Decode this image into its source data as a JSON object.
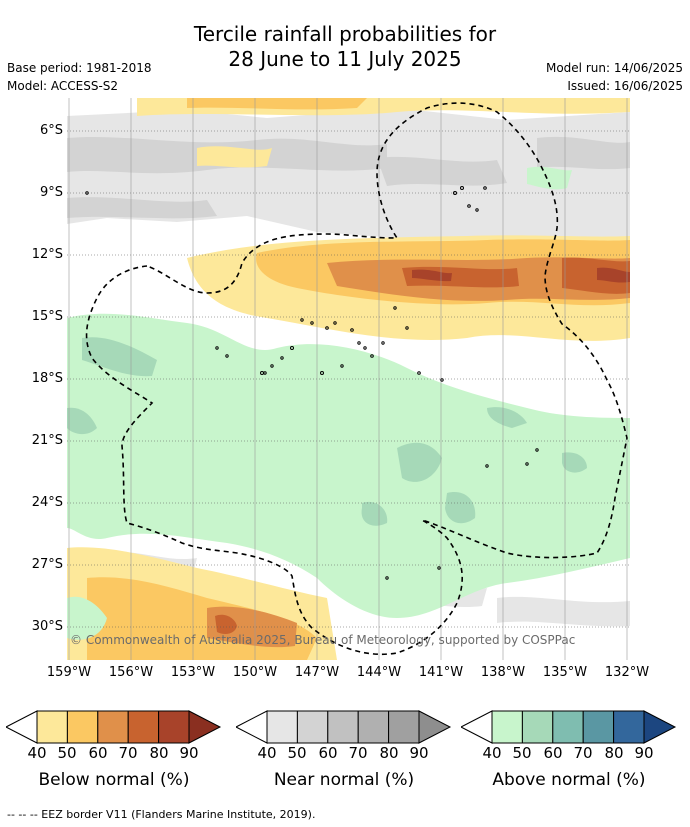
{
  "title_line1": "Tercile rainfall probabilities for",
  "title_line2": "28 June to 11 July 2025",
  "base_period": "Base period: 1981-2018",
  "model": "Model: ACCESS-S2",
  "model_run": "Model run: 14/06/2025",
  "issued": "Issued: 16/06/2025",
  "map": {
    "lat_labels": [
      "6°S",
      "9°S",
      "12°S",
      "15°S",
      "18°S",
      "21°S",
      "24°S",
      "27°S",
      "30°S"
    ],
    "lon_labels": [
      "159°W",
      "156°W",
      "153°W",
      "150°W",
      "147°W",
      "144°W",
      "141°W",
      "138°W",
      "135°W",
      "132°W"
    ],
    "copyright": "© Commonwealth of Australia 2025, Bureau of Meteorology, supported by COSPPac"
  },
  "legend": {
    "below": {
      "caption": "Below normal (%)",
      "ticks": [
        "40",
        "50",
        "60",
        "70",
        "80",
        "90"
      ],
      "colors": [
        "#fde89a",
        "#fbc862",
        "#e0904a",
        "#c8632f",
        "#a8432a",
        "#8a2f20"
      ]
    },
    "near": {
      "caption": "Near normal (%)",
      "ticks": [
        "40",
        "50",
        "60",
        "70",
        "80",
        "90"
      ],
      "colors": [
        "#e6e6e6",
        "#d3d3d3",
        "#c1c1c1",
        "#b0b0b0",
        "#a0a0a0",
        "#8e8e8e"
      ]
    },
    "above": {
      "caption": "Above normal (%)",
      "ticks": [
        "40",
        "50",
        "60",
        "70",
        "80",
        "90"
      ],
      "colors": [
        "#c8f5cc",
        "#a6d9b8",
        "#7fbdb0",
        "#5a97a3",
        "#33679c",
        "#1c4680"
      ]
    }
  },
  "footer": "--  --  -- EEZ border V11 (Flanders Marine Institute, 2019)."
}
